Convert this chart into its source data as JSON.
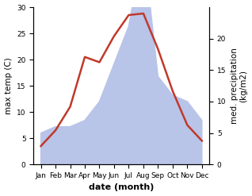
{
  "months": [
    "Jan",
    "Feb",
    "Mar",
    "Apr",
    "May",
    "Jun",
    "Jul",
    "Aug",
    "Sep",
    "Oct",
    "Nov",
    "Dec"
  ],
  "month_positions": [
    0,
    1,
    2,
    3,
    4,
    5,
    6,
    7,
    8,
    9,
    10,
    11
  ],
  "temperature": [
    3.5,
    6.5,
    11.0,
    20.5,
    19.5,
    24.5,
    28.5,
    28.8,
    22.0,
    14.0,
    7.5,
    4.5
  ],
  "precipitation": [
    5,
    6,
    6,
    7,
    10,
    16,
    22,
    35,
    14,
    11,
    10,
    7
  ],
  "temp_color": "#c0392b",
  "precip_fill_color": "#b8c4e8",
  "temp_ylim": [
    0,
    30
  ],
  "right_ylim": [
    0,
    25
  ],
  "left_yticks": [
    0,
    5,
    10,
    15,
    20,
    25,
    30
  ],
  "right_yticks": [
    0,
    5,
    10,
    15,
    20
  ],
  "xlabel": "date (month)",
  "ylabel_left": "max temp (C)",
  "ylabel_right": "med. precipitation\n(kg/m2)",
  "label_fontsize": 7.5,
  "tick_fontsize": 6.5,
  "xlabel_fontsize": 8,
  "linewidth": 1.8,
  "figwidth": 3.18,
  "figheight": 2.47,
  "dpi": 100
}
